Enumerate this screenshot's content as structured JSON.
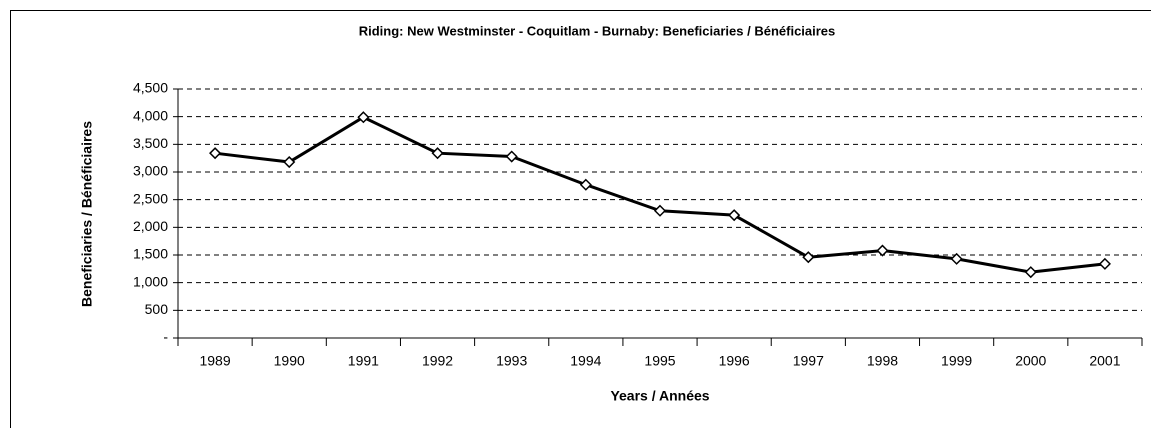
{
  "chart_data": {
    "type": "line",
    "title": "Riding:  New Westminster - Coquitlam - Burnaby:  Beneficiaries / Bénéficiaires",
    "x_label": "Years / Années",
    "y_label": "Beneficiaries / Bénéficiaires",
    "categories": [
      "1989",
      "1990",
      "1991",
      "1992",
      "1993",
      "1994",
      "1995",
      "1996",
      "1997",
      "1998",
      "1999",
      "2000",
      "2001"
    ],
    "values": [
      3340,
      3180,
      3990,
      3340,
      3280,
      2770,
      2300,
      2220,
      1460,
      1580,
      1430,
      1190,
      1340
    ],
    "color": "#000000",
    "ylim": [
      0,
      4500
    ],
    "yticks": [
      {
        "value": 0,
        "label": "-"
      },
      500,
      {
        "value": 1000,
        "label": "1,000"
      },
      {
        "value": 1500,
        "label": "1,500"
      },
      {
        "value": 2000,
        "label": "2,000"
      },
      {
        "value": 2500,
        "label": "2,500"
      },
      {
        "value": 3000,
        "label": "3,000"
      },
      {
        "value": 3500,
        "label": "3,500"
      },
      {
        "value": 4000,
        "label": "4,000"
      },
      {
        "value": 4500,
        "label": "4,500"
      }
    ],
    "grid": true
  }
}
